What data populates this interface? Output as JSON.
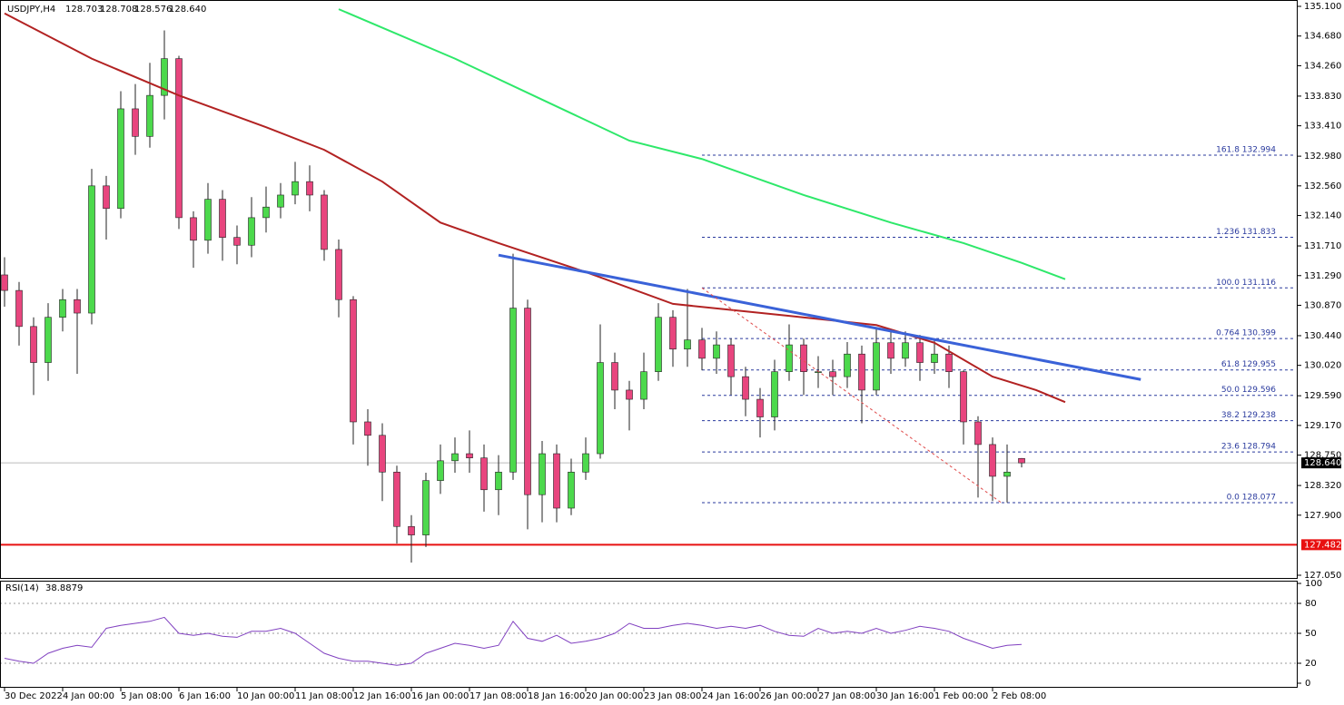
{
  "header": {
    "symbol": "USDJPY,H4",
    "ohlc": [
      "128.703",
      "128.708",
      "128.576",
      "128.640"
    ]
  },
  "chart_data": {
    "type": "candlestick",
    "bull_color": "#4cd94c",
    "bear_color": "#e8457e",
    "wick_color": "#222222",
    "ylim": [
      127.05,
      135.1
    ],
    "yticks": [
      {
        "value": 135.1,
        "label": "135.100"
      },
      {
        "value": 134.68,
        "label": "134.680"
      },
      {
        "value": 134.26,
        "label": "134.260"
      },
      {
        "value": 133.83,
        "label": "133.830"
      },
      {
        "value": 133.41,
        "label": "133.410"
      },
      {
        "value": 132.98,
        "label": "132.980"
      },
      {
        "value": 132.56,
        "label": "132.560"
      },
      {
        "value": 132.14,
        "label": "132.140"
      },
      {
        "value": 131.71,
        "label": "131.710"
      },
      {
        "value": 131.29,
        "label": "131.290"
      },
      {
        "value": 130.87,
        "label": "130.870"
      },
      {
        "value": 130.44,
        "label": "130.440"
      },
      {
        "value": 130.02,
        "label": "130.020"
      },
      {
        "value": 129.59,
        "label": "129.590"
      },
      {
        "value": 129.17,
        "label": "129.170"
      },
      {
        "value": 128.75,
        "label": "128.750"
      },
      {
        "value": 128.32,
        "label": "128.320"
      },
      {
        "value": 127.9,
        "label": "127.900"
      },
      {
        "value": 127.05,
        "label": "127.050"
      }
    ],
    "time_labels": [
      "30 Dec 2022",
      "4 Jan 00:00",
      "5 Jan 08:00",
      "6 Jan 16:00",
      "10 Jan 00:00",
      "11 Jan 08:00",
      "12 Jan 16:00",
      "16 Jan 00:00",
      "17 Jan 08:00",
      "18 Jan 16:00",
      "20 Jan 00:00",
      "23 Jan 08:00",
      "24 Jan 16:00",
      "26 Jan 00:00",
      "27 Jan 08:00",
      "30 Jan 16:00",
      "1 Feb 00:00",
      "2 Feb 08:00"
    ],
    "candles": {
      "open": [
        131.3,
        131.08,
        130.57,
        130.06,
        130.7,
        130.95,
        130.76,
        132.56,
        132.24,
        133.65,
        133.26,
        133.84,
        134.36,
        132.11,
        131.79,
        132.37,
        131.83,
        131.72,
        132.11,
        132.26,
        132.43,
        132.62,
        132.43,
        131.66,
        130.95,
        129.22,
        129.03,
        128.51,
        127.74,
        127.62,
        128.39,
        128.67,
        128.77,
        128.71,
        128.26,
        128.51,
        130.83,
        128.19,
        128.77,
        128.0,
        128.51,
        128.77,
        130.06,
        129.67,
        129.54,
        129.93,
        130.7,
        130.25,
        130.38,
        130.12,
        130.31,
        129.86,
        129.54,
        129.29,
        129.93,
        130.31,
        129.93,
        129.93,
        129.86,
        130.18,
        129.67,
        130.34,
        130.12,
        130.34,
        130.06,
        130.18,
        129.93,
        129.22,
        128.9,
        128.45,
        128.703
      ],
      "high": [
        131.55,
        131.2,
        130.7,
        130.9,
        131.1,
        131.1,
        132.8,
        132.7,
        133.9,
        134.0,
        134.3,
        134.76,
        134.4,
        132.2,
        132.6,
        132.5,
        132.0,
        132.4,
        132.55,
        132.6,
        132.9,
        132.85,
        132.5,
        131.8,
        131.0,
        129.4,
        129.2,
        128.6,
        127.9,
        128.5,
        128.9,
        129.0,
        129.1,
        128.9,
        128.75,
        131.6,
        130.95,
        128.95,
        128.9,
        128.7,
        129.0,
        130.6,
        130.2,
        129.8,
        130.2,
        130.9,
        130.8,
        131.1,
        130.55,
        130.5,
        130.4,
        130.0,
        129.7,
        130.1,
        130.6,
        130.4,
        130.15,
        130.1,
        130.35,
        130.3,
        130.55,
        130.5,
        130.5,
        130.45,
        130.4,
        130.3,
        129.95,
        129.3,
        129.0,
        128.9,
        128.708
      ],
      "low": [
        130.85,
        130.3,
        129.6,
        129.8,
        130.5,
        129.9,
        130.6,
        131.8,
        132.1,
        133.0,
        133.1,
        133.5,
        131.95,
        131.4,
        131.6,
        131.5,
        131.45,
        131.55,
        131.9,
        132.1,
        132.3,
        132.2,
        131.5,
        130.7,
        128.9,
        128.6,
        128.1,
        127.5,
        127.23,
        127.45,
        128.2,
        128.5,
        128.5,
        127.95,
        127.9,
        128.4,
        127.7,
        127.8,
        127.8,
        127.9,
        128.4,
        128.7,
        129.4,
        129.1,
        129.4,
        129.8,
        130.0,
        130.0,
        129.95,
        129.9,
        129.6,
        129.3,
        129.0,
        129.1,
        129.8,
        129.6,
        129.7,
        129.6,
        129.7,
        129.2,
        129.6,
        129.9,
        130.0,
        129.8,
        129.9,
        129.7,
        128.9,
        128.15,
        128.1,
        128.08,
        128.576
      ],
      "close": [
        131.08,
        130.57,
        130.06,
        130.7,
        130.95,
        130.76,
        132.56,
        132.24,
        133.65,
        133.26,
        133.84,
        134.36,
        132.11,
        131.79,
        132.37,
        131.83,
        131.72,
        132.11,
        132.26,
        132.43,
        132.62,
        132.43,
        131.66,
        130.95,
        129.22,
        129.03,
        128.51,
        127.74,
        127.62,
        128.39,
        128.67,
        128.77,
        128.71,
        128.26,
        128.51,
        130.83,
        128.19,
        128.77,
        128.0,
        128.51,
        128.77,
        130.06,
        129.67,
        129.54,
        129.93,
        130.7,
        130.25,
        130.38,
        130.12,
        130.31,
        129.86,
        129.54,
        129.29,
        129.93,
        130.31,
        129.93,
        129.93,
        129.86,
        130.18,
        129.67,
        130.34,
        130.12,
        130.34,
        130.06,
        130.18,
        129.93,
        129.22,
        128.9,
        128.45,
        128.51,
        128.64
      ]
    },
    "lines": [
      {
        "color": "#b22222",
        "width": 2,
        "x": [
          0,
          6,
          12,
          18,
          22,
          26,
          30,
          34,
          40,
          46,
          54,
          60,
          64,
          68,
          71,
          73
        ],
        "values": [
          135.0,
          134.36,
          133.84,
          133.39,
          133.07,
          132.62,
          132.04,
          131.75,
          131.34,
          130.89,
          130.72,
          130.59,
          130.34,
          129.86,
          129.67,
          129.5
        ]
      },
      {
        "color": "#2ee86a",
        "width": 2,
        "x": [
          23,
          31,
          37,
          43,
          48,
          55,
          61,
          66,
          70,
          73
        ],
        "values": [
          135.06,
          134.36,
          133.78,
          133.2,
          132.94,
          132.43,
          132.04,
          131.75,
          131.47,
          131.24
        ]
      },
      {
        "color": "#3a62d8",
        "width": 3,
        "x": [
          34,
          78.2
        ],
        "values": [
          131.58,
          129.82
        ]
      },
      {
        "color": "#e05050",
        "width": 1,
        "dash": true,
        "x": [
          48,
          68.6
        ],
        "values": [
          131.116,
          128.077
        ]
      }
    ],
    "current_price": {
      "value": 128.64,
      "label": "128.640"
    },
    "support": {
      "value": 127.482,
      "label": "127.482",
      "color": "#e81010"
    },
    "fib_levels": [
      {
        "value": 132.994,
        "label": "161.8 132.994"
      },
      {
        "value": 131.833,
        "label": "1.236 131.833"
      },
      {
        "value": 131.116,
        "label": "100.0 131.116"
      },
      {
        "value": 130.399,
        "label": "0.764 130.399"
      },
      {
        "value": 129.955,
        "label": "61.8 129.955"
      },
      {
        "value": 129.596,
        "label": "50.0 129.596"
      },
      {
        "value": 129.238,
        "label": "38.2 129.238"
      },
      {
        "value": 128.794,
        "label": "23.6 128.794"
      },
      {
        "value": 128.077,
        "label": "0.0 128.077"
      }
    ],
    "rsi": {
      "title": "RSI(14)",
      "value_label": "38.8879",
      "color": "#8040c0",
      "ylim": [
        0,
        100
      ],
      "yticks": [
        100,
        80,
        50,
        20,
        0
      ],
      "levels": [
        80,
        50,
        20
      ],
      "values": [
        25,
        22,
        20,
        30,
        35,
        38,
        36,
        55,
        58,
        60,
        62,
        66,
        50,
        48,
        50,
        47,
        46,
        52,
        52,
        55,
        50,
        40,
        30,
        25,
        22,
        22,
        20,
        18,
        20,
        30,
        35,
        40,
        38,
        35,
        38,
        62,
        45,
        42,
        48,
        40,
        42,
        45,
        50,
        60,
        55,
        55,
        58,
        60,
        58,
        55,
        57,
        55,
        58,
        52,
        48,
        47,
        55,
        50,
        52,
        50,
        55,
        50,
        53,
        57,
        55,
        52,
        45,
        40,
        35,
        38,
        38.8879
      ]
    }
  }
}
